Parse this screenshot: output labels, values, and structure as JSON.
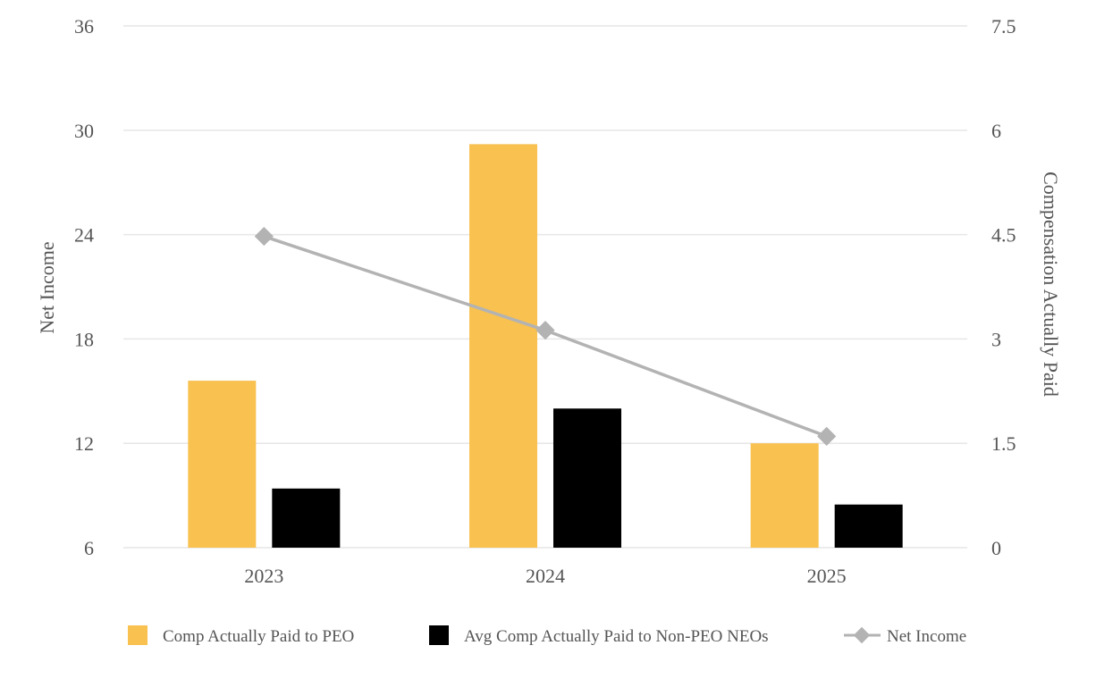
{
  "chart_data": {
    "type": "bar",
    "categories": [
      "2023",
      "2024",
      "2025"
    ],
    "series": [
      {
        "name": "Comp Actually Paid to PEO",
        "axis": "right",
        "kind": "bar",
        "color": "#F8C150",
        "values": [
          2.4,
          5.8,
          1.5
        ]
      },
      {
        "name": "Avg Comp Actually Paid to Non-PEO NEOs",
        "axis": "right",
        "kind": "bar",
        "color": "#000000",
        "values": [
          0.85,
          2.0,
          0.62
        ]
      },
      {
        "name": "Net Income",
        "axis": "left",
        "kind": "line",
        "marker": "diamond",
        "color": "#B3B3B3",
        "values": [
          23.9,
          18.5,
          12.4
        ]
      }
    ],
    "left_axis": {
      "label": "Net Income",
      "ylim": [
        6,
        36
      ],
      "ticks": [
        "6",
        "12",
        "18",
        "24",
        "30",
        "36"
      ]
    },
    "right_axis": {
      "label": "Compensation Actually Paid",
      "ylim": [
        0,
        7.5
      ],
      "ticks": [
        "0",
        "1.5",
        "3",
        "4.5",
        "6",
        "7.5"
      ]
    },
    "grid": true,
    "legend_position": "bottom"
  }
}
